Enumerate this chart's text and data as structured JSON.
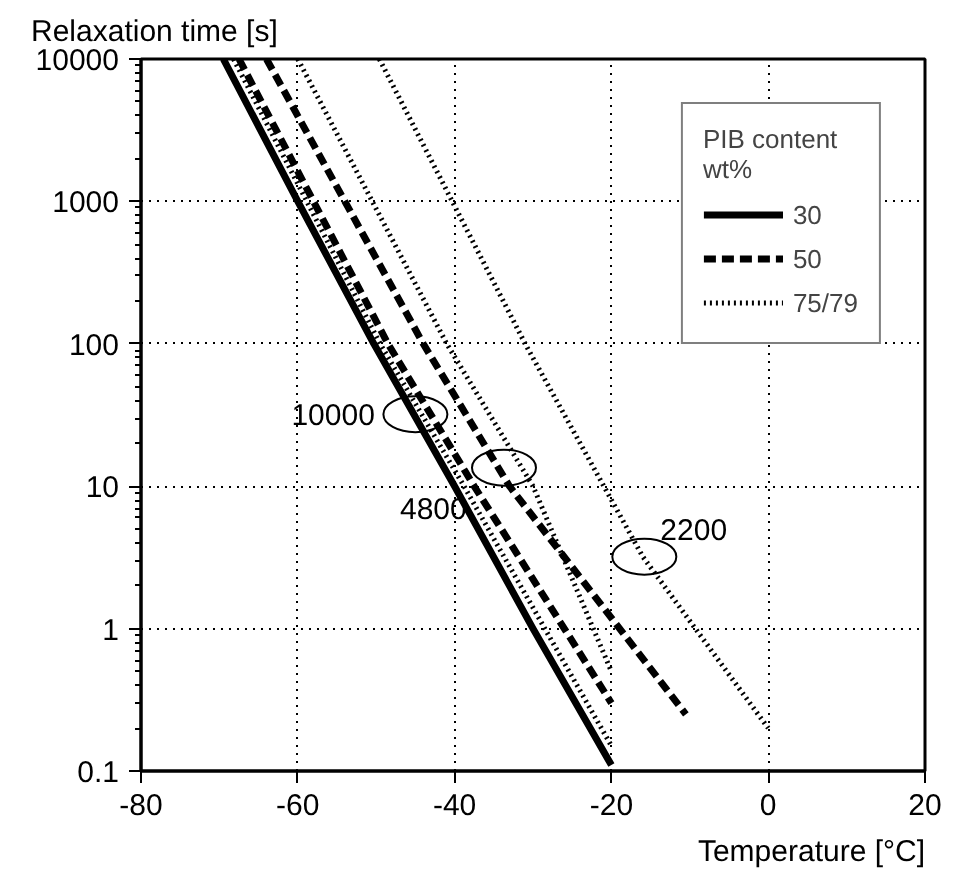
{
  "chart_data": {
    "type": "line",
    "xlabel": "Temperature [°C]",
    "ylabel": "Relaxation time [s]",
    "legend_title": "PIB content\nwt%",
    "log": "y",
    "grid": true,
    "legend": "top right",
    "xlim": [
      -80,
      20
    ],
    "ylim": [
      0.1,
      10000
    ],
    "xticks": [
      -80,
      -60,
      -40,
      -20,
      0,
      20
    ],
    "yticks": [
      0.1,
      1,
      10,
      100,
      1000,
      10000
    ],
    "series": [
      {
        "name": "30",
        "color": "#000000",
        "line_style": "solid",
        "x": [
          -69.5,
          -60,
          -50.3,
          -40,
          -30,
          -20
        ],
        "values": [
          10000,
          1000,
          100,
          10,
          1,
          0.11
        ]
      },
      {
        "color": "#000000",
        "line_style": "dotted",
        "x": [
          -68.2,
          -49.5,
          -38.8,
          -20
        ],
        "values": [
          10000,
          100,
          10,
          0.15
        ]
      },
      {
        "name": "50",
        "color": "#000000",
        "line_style": "dashed",
        "x": [
          -67.5,
          -48.5,
          -37.5,
          -20
        ],
        "values": [
          10000,
          100,
          10,
          0.3
        ]
      },
      {
        "color": "#000000",
        "line_style": "dashed",
        "x": [
          -64,
          -44,
          -33,
          -10.5
        ],
        "values": [
          10000,
          100,
          10,
          0.25
        ]
      },
      {
        "color": "#000000",
        "line_style": "dotted",
        "x": [
          -60,
          -41,
          -30,
          -20
        ],
        "values": [
          10000,
          100,
          10,
          0.5
        ]
      },
      {
        "name": "75/79",
        "color": "#000000",
        "line_style": "dotted",
        "x": [
          -49.6,
          -31,
          -16,
          0
        ],
        "values": [
          10000,
          100,
          3.2,
          0.2
        ]
      }
    ],
    "annotations": [
      {
        "text": "10000",
        "x": -45,
        "y": 32
      },
      {
        "text": "4800",
        "x": -33.7,
        "y": 13.5
      },
      {
        "text": "2200",
        "x": -15.8,
        "y": 3.2
      }
    ]
  }
}
